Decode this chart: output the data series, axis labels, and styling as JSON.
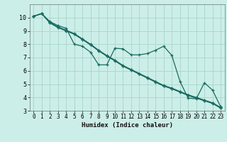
{
  "xlabel": "Humidex (Indice chaleur)",
  "ylabel": "",
  "bg_color": "#cceee8",
  "grid_color": "#aad8d0",
  "line_color": "#1a6a60",
  "xlim": [
    -0.5,
    23.5
  ],
  "ylim": [
    3,
    11
  ],
  "yticks": [
    3,
    4,
    5,
    6,
    7,
    8,
    9,
    10
  ],
  "xticks": [
    0,
    1,
    2,
    3,
    4,
    5,
    6,
    7,
    8,
    9,
    10,
    11,
    12,
    13,
    14,
    15,
    16,
    17,
    18,
    19,
    20,
    21,
    22,
    23
  ],
  "line1_x": [
    0,
    1,
    2,
    3,
    4,
    5,
    6,
    7,
    8,
    9,
    10,
    11,
    12,
    13,
    14,
    15,
    16,
    17,
    18,
    19,
    20,
    21,
    22,
    23
  ],
  "line1_y": [
    10.1,
    10.3,
    9.7,
    9.4,
    9.2,
    8.0,
    7.85,
    7.4,
    6.45,
    6.45,
    7.7,
    7.65,
    7.2,
    7.2,
    7.3,
    7.55,
    7.85,
    7.15,
    5.2,
    3.95,
    3.9,
    5.1,
    4.55,
    3.3
  ],
  "line2_x": [
    0,
    1,
    2,
    3,
    4,
    5,
    6,
    7,
    8,
    9,
    10,
    11,
    12,
    13,
    14,
    15,
    16,
    17,
    18,
    19,
    20,
    21,
    22,
    23
  ],
  "line2_y": [
    10.1,
    10.3,
    9.65,
    9.3,
    9.05,
    8.8,
    8.4,
    8.0,
    7.55,
    7.15,
    6.8,
    6.4,
    6.1,
    5.8,
    5.5,
    5.2,
    4.9,
    4.7,
    4.45,
    4.2,
    4.0,
    3.8,
    3.6,
    3.25
  ],
  "line3_x": [
    0,
    1,
    2,
    3,
    4,
    5,
    6,
    7,
    8,
    9,
    10,
    11,
    12,
    13,
    14,
    15,
    16,
    17,
    18,
    19,
    20,
    21,
    22,
    23
  ],
  "line3_y": [
    10.1,
    10.3,
    9.62,
    9.27,
    9.02,
    8.77,
    8.37,
    7.97,
    7.52,
    7.12,
    6.77,
    6.37,
    6.07,
    5.77,
    5.47,
    5.17,
    4.87,
    4.67,
    4.42,
    4.17,
    3.97,
    3.77,
    3.57,
    3.22
  ],
  "line4_x": [
    0,
    1,
    2,
    3,
    4,
    5,
    6,
    7,
    8,
    9,
    10,
    11,
    12,
    13,
    14,
    15,
    16,
    17,
    18,
    19,
    20,
    21,
    22,
    23
  ],
  "line4_y": [
    10.1,
    10.3,
    9.6,
    9.25,
    9.0,
    8.75,
    8.35,
    7.95,
    7.5,
    7.1,
    6.75,
    6.35,
    6.05,
    5.75,
    5.45,
    5.15,
    4.85,
    4.65,
    4.4,
    4.15,
    3.95,
    3.75,
    3.55,
    3.2
  ]
}
